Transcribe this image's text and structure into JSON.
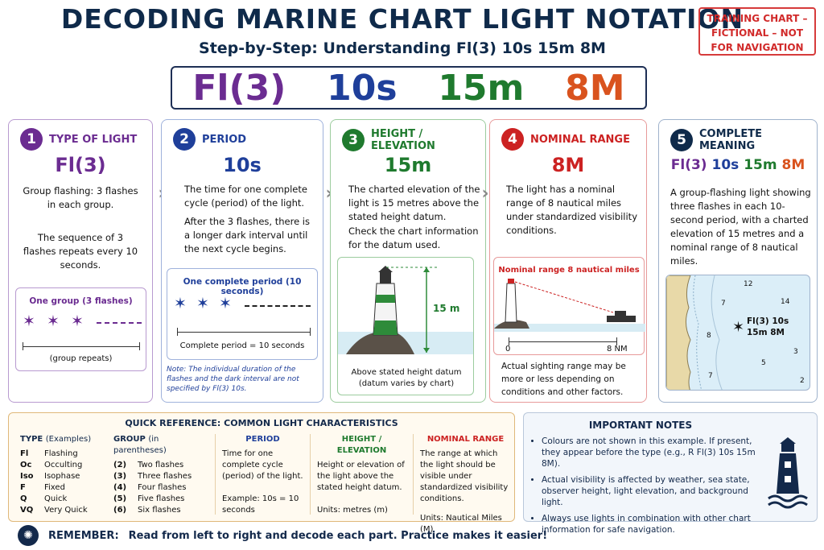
{
  "title": "DECODING MARINE CHART LIGHT NOTATION",
  "subtitle": "Step-by-Step: Understanding Fl(3) 10s 15m 8M",
  "warning": "TRAINING CHART – FICTIONAL – NOT FOR NAVIGATION",
  "notation": {
    "type": "Fl(3)",
    "period": "10s",
    "height": "15m",
    "range": "8M"
  },
  "colors": {
    "purple": "#6b2c91",
    "blue": "#1f3f9a",
    "green": "#1f7a2e",
    "red": "#d9531e",
    "navy": "#0f2a4a"
  },
  "steps": [
    {
      "num": "1",
      "title": "TYPE OF LIGHT",
      "value": "Fl(3)",
      "text1": "Group flashing: 3 flashes in each group.",
      "text2": "The sequence of 3 flashes repeats every 10 seconds.",
      "diagram_title": "One group (3 flashes)",
      "diagram_caption": "(group repeats)"
    },
    {
      "num": "2",
      "title": "PERIOD",
      "value": "10s",
      "text1": "The time for one complete cycle (period) of the light.",
      "text2": "After the 3 flashes, there is a longer dark interval until the next cycle begins.",
      "diagram_title": "One complete period (10 seconds)",
      "diagram_caption": "Complete period = 10 seconds",
      "note": "Note: The individual duration of the flashes and the dark interval are not specified by Fl(3) 10s."
    },
    {
      "num": "3",
      "title": "HEIGHT / ELEVATION",
      "value": "15m",
      "text1": "The charted elevation of the light is 15 metres above the stated height datum.",
      "text2": "Check the chart information for the datum used.",
      "diagram_label": "15 m",
      "diagram_caption": "Above stated height datum (datum varies by chart)"
    },
    {
      "num": "4",
      "title": "NOMINAL RANGE",
      "value": "8M",
      "text1": "The light has a nominal range of 8 nautical miles under standardized visibility conditions.",
      "diagram_title": "Nominal range 8 nautical miles",
      "scale_start": "0",
      "scale_end": "8 NM",
      "text2": "Actual sighting range may be more or less depending on conditions and other factors."
    },
    {
      "num": "5",
      "title": "COMPLETE MEANING",
      "text1": "A group-flashing light showing three flashes in each 10-second period, with a charted elevation of 15 metres and a nominal range of 8 nautical miles.",
      "map_label1": "Fl(3) 10s",
      "map_label2": "15m 8M",
      "depths": [
        "12",
        "14",
        "7",
        "8",
        "3",
        "5",
        "2",
        "7"
      ]
    }
  ],
  "quickref": {
    "title": "QUICK REFERENCE: COMMON LIGHT CHARACTERISTICS",
    "type_head": "TYPE",
    "type_head_sub": "(Examples)",
    "types": [
      [
        "Fl",
        "Flashing"
      ],
      [
        "Oc",
        "Occulting"
      ],
      [
        "Iso",
        "Isophase"
      ],
      [
        "F",
        "Fixed"
      ],
      [
        "Q",
        "Quick"
      ],
      [
        "VQ",
        "Very Quick"
      ]
    ],
    "group_head": "GROUP",
    "group_head_sub": "(in parentheses)",
    "groups": [
      [
        "(2)",
        "Two flashes"
      ],
      [
        "(3)",
        "Three flashes"
      ],
      [
        "(4)",
        "Four flashes"
      ],
      [
        "(5)",
        "Five flashes"
      ],
      [
        "(6)",
        "Six flashes"
      ]
    ],
    "period_head": "PERIOD",
    "period_text": "Time for one complete cycle (period) of the light.",
    "period_example": "Example: 10s = 10 seconds",
    "height_head": "HEIGHT / ELEVATION",
    "height_text": "Height or elevation of the light above the stated height datum.",
    "height_units": "Units: metres (m)",
    "range_head": "NOMINAL RANGE",
    "range_text": "The range at which the light should be visible under standardized visibility conditions.",
    "range_units": "Units: Nautical Miles (M)"
  },
  "notes": {
    "title": "IMPORTANT NOTES",
    "items": [
      "Colours are not shown in this example. If present, they appear before the type (e.g., R Fl(3) 10s 15m 8M).",
      "Actual visibility is affected by weather, sea state, observer height, light elevation, and background light.",
      "Always use lights in combination with other chart information for safe navigation."
    ]
  },
  "remember": {
    "label": "REMEMBER:",
    "text": "Read from left to right and decode each part. Practice makes it easier!"
  }
}
